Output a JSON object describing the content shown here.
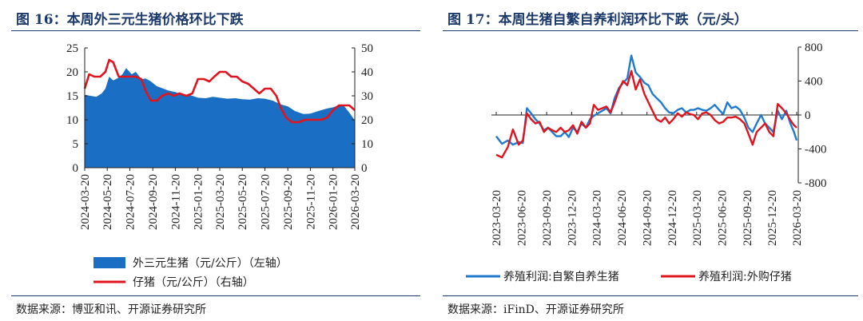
{
  "left": {
    "title": "图 16：本周外三元生猪价格环比下跌",
    "source": "数据来源：博亚和讯、开源证券研究所",
    "chart_data": {
      "type": "area",
      "x_ticks": [
        "2024-03-20",
        "2024-05-20",
        "2024-07-20",
        "2024-09-20",
        "2024-11-20",
        "2025-01-20",
        "2025-03-20",
        "2025-05-20",
        "2025-07-20",
        "2025-09-20",
        "2025-11-20",
        "2026-01-20",
        "2026-03-20"
      ],
      "ylim_left": [
        0,
        25
      ],
      "yticks_left": [
        0,
        5,
        10,
        15,
        20,
        25
      ],
      "ylim_right": [
        0,
        50
      ],
      "yticks_right": [
        0,
        10,
        20,
        30,
        40,
        50
      ],
      "series": [
        {
          "name": "外三元生猪（元/公斤）（左轴）",
          "axis": "left",
          "kind": "area",
          "color": "#1a6fc4",
          "x": [
            "2024-03-20",
            "2024-04-05",
            "2024-04-20",
            "2024-05-05",
            "2024-05-15",
            "2024-05-25",
            "2024-06-05",
            "2024-06-20",
            "2024-07-01",
            "2024-07-10",
            "2024-07-25",
            "2024-08-05",
            "2024-08-20",
            "2024-09-01",
            "2024-09-15",
            "2024-10-01",
            "2024-10-15",
            "2024-11-01",
            "2024-11-20",
            "2024-12-10",
            "2025-01-01",
            "2025-01-20",
            "2025-02-10",
            "2025-03-01",
            "2025-03-20",
            "2025-04-10",
            "2025-05-01",
            "2025-05-20",
            "2025-06-10",
            "2025-07-01",
            "2025-07-20",
            "2025-08-10",
            "2025-09-01",
            "2025-09-20",
            "2025-10-10",
            "2025-11-01",
            "2025-11-20",
            "2025-12-10",
            "2026-01-01",
            "2026-01-20",
            "2026-02-05",
            "2026-02-20",
            "2026-03-05",
            "2026-03-20"
          ],
          "y": [
            15.2,
            15.0,
            14.8,
            15.5,
            16.5,
            19.0,
            18.2,
            18.8,
            19.6,
            20.8,
            19.5,
            20.0,
            18.5,
            18.6,
            18.0,
            17.0,
            16.6,
            16.1,
            15.8,
            15.2,
            15.1,
            14.6,
            14.5,
            14.8,
            14.6,
            14.4,
            14.5,
            14.3,
            14.2,
            14.5,
            14.4,
            14.0,
            13.2,
            12.8,
            11.8,
            11.2,
            11.3,
            11.8,
            12.3,
            12.6,
            13.0,
            12.8,
            11.5,
            9.9
          ]
        },
        {
          "name": "仔猪（元/公斤）（右轴）",
          "axis": "right",
          "kind": "line",
          "color": "#e0141e",
          "x": [
            "2024-03-20",
            "2024-04-01",
            "2024-04-15",
            "2024-05-01",
            "2024-05-15",
            "2024-05-25",
            "2024-06-05",
            "2024-06-20",
            "2024-07-05",
            "2024-07-20",
            "2024-08-05",
            "2024-08-20",
            "2024-09-01",
            "2024-09-15",
            "2024-10-01",
            "2024-10-15",
            "2024-11-01",
            "2024-11-15",
            "2024-12-01",
            "2024-12-20",
            "2025-01-05",
            "2025-01-20",
            "2025-02-05",
            "2025-02-20",
            "2025-03-05",
            "2025-03-20",
            "2025-04-05",
            "2025-04-20",
            "2025-05-05",
            "2025-05-20",
            "2025-06-05",
            "2025-06-20",
            "2025-07-05",
            "2025-07-20",
            "2025-08-05",
            "2025-08-20",
            "2025-09-01",
            "2025-09-15",
            "2025-10-01",
            "2025-10-20",
            "2025-11-05",
            "2025-11-20",
            "2025-12-05",
            "2025-12-20",
            "2026-01-05",
            "2026-01-20",
            "2026-02-05",
            "2026-02-20",
            "2026-03-05",
            "2026-03-20"
          ],
          "y": [
            33,
            39,
            38,
            38,
            40,
            45,
            44,
            38,
            38,
            38,
            38,
            37,
            32,
            28,
            28,
            30,
            31,
            30,
            31,
            30,
            31,
            37,
            37,
            36,
            38,
            40,
            40,
            38,
            38,
            36,
            35,
            33,
            31,
            33,
            33,
            30,
            25,
            21,
            19,
            19,
            20,
            20,
            20,
            20,
            21,
            24,
            26,
            26,
            26,
            24
          ]
        }
      ]
    },
    "legend": [
      {
        "label": "外三元生猪（元/公斤）（左轴）",
        "color": "#1a6fc4",
        "kind": "area"
      },
      {
        "label": "仔猪（元/公斤）（右轴）",
        "color": "#e0141e",
        "kind": "line"
      }
    ]
  },
  "right": {
    "title": "图 17：本周生猪自繁自养利润环比下跌（元/头）",
    "source": "数据来源：iFinD、开源证券研究所",
    "chart_data": {
      "type": "line",
      "x_ticks": [
        "2023-03-20",
        "2023-06-20",
        "2023-09-20",
        "2023-12-20",
        "2024-03-20",
        "2024-06-20",
        "2024-09-20",
        "2024-12-20",
        "2025-03-20",
        "2025-06-20",
        "2025-09-20",
        "2025-12-20",
        "2026-03-20"
      ],
      "ylim": [
        -800,
        800
      ],
      "yticks": [
        -800,
        -400,
        0,
        400,
        800
      ],
      "series": [
        {
          "name": "养殖利润:自繁自养生猪",
          "color": "#1f7ad0",
          "x": [
            "2023-03-20",
            "2023-04-10",
            "2023-05-01",
            "2023-05-20",
            "2023-06-10",
            "2023-06-25",
            "2023-07-10",
            "2023-07-25",
            "2023-08-10",
            "2023-08-25",
            "2023-09-10",
            "2023-09-25",
            "2023-10-10",
            "2023-10-25",
            "2023-11-10",
            "2023-11-25",
            "2023-12-10",
            "2023-12-25",
            "2024-01-10",
            "2024-01-25",
            "2024-02-10",
            "2024-02-25",
            "2024-03-10",
            "2024-03-25",
            "2024-04-10",
            "2024-04-25",
            "2024-05-10",
            "2024-05-25",
            "2024-06-10",
            "2024-06-25",
            "2024-07-10",
            "2024-07-25",
            "2024-08-10",
            "2024-08-25",
            "2024-09-10",
            "2024-09-25",
            "2024-10-10",
            "2024-10-25",
            "2024-11-10",
            "2024-11-25",
            "2024-12-10",
            "2024-12-25",
            "2025-01-10",
            "2025-01-25",
            "2025-02-10",
            "2025-02-25",
            "2025-03-10",
            "2025-03-25",
            "2025-04-10",
            "2025-04-25",
            "2025-05-10",
            "2025-05-25",
            "2025-06-10",
            "2025-06-25",
            "2025-07-10",
            "2025-07-25",
            "2025-08-10",
            "2025-08-25",
            "2025-09-10",
            "2025-09-25",
            "2025-10-10",
            "2025-10-25",
            "2025-11-10",
            "2025-11-25",
            "2025-12-10",
            "2025-12-25",
            "2026-01-10",
            "2026-01-25",
            "2026-02-10",
            "2026-02-25",
            "2026-03-10",
            "2026-03-20"
          ],
          "y": [
            -250,
            -340,
            -300,
            -350,
            -320,
            -330,
            80,
            20,
            -50,
            -100,
            -180,
            -150,
            -200,
            -250,
            -250,
            -200,
            -260,
            -150,
            -200,
            -100,
            -150,
            -50,
            -10,
            20,
            50,
            80,
            20,
            200,
            320,
            380,
            430,
            700,
            500,
            450,
            380,
            350,
            250,
            200,
            150,
            80,
            30,
            20,
            60,
            80,
            30,
            60,
            60,
            80,
            60,
            50,
            80,
            120,
            60,
            10,
            150,
            80,
            100,
            60,
            -30,
            -150,
            -200,
            -100,
            0,
            -100,
            -150,
            -200,
            50,
            -50,
            50,
            -100,
            -200,
            -300
          ]
        },
        {
          "name": "养殖利润:外购仔猪",
          "color": "#e0141e",
          "x": [
            "2023-03-20",
            "2023-04-10",
            "2023-05-01",
            "2023-05-20",
            "2023-06-10",
            "2023-06-25",
            "2023-07-10",
            "2023-07-25",
            "2023-08-10",
            "2023-08-25",
            "2023-09-10",
            "2023-09-25",
            "2023-10-10",
            "2023-10-25",
            "2023-11-10",
            "2023-11-25",
            "2023-12-10",
            "2023-12-25",
            "2024-01-10",
            "2024-01-25",
            "2024-02-10",
            "2024-02-25",
            "2024-03-10",
            "2024-03-25",
            "2024-04-10",
            "2024-04-25",
            "2024-05-10",
            "2024-05-25",
            "2024-06-10",
            "2024-06-25",
            "2024-07-10",
            "2024-07-25",
            "2024-08-10",
            "2024-08-25",
            "2024-09-10",
            "2024-09-25",
            "2024-10-10",
            "2024-10-25",
            "2024-11-10",
            "2024-11-25",
            "2024-12-10",
            "2024-12-25",
            "2025-01-10",
            "2025-01-25",
            "2025-02-10",
            "2025-02-25",
            "2025-03-10",
            "2025-03-25",
            "2025-04-10",
            "2025-04-25",
            "2025-05-10",
            "2025-05-25",
            "2025-06-10",
            "2025-06-25",
            "2025-07-10",
            "2025-07-25",
            "2025-08-10",
            "2025-08-25",
            "2025-09-10",
            "2025-09-25",
            "2025-10-10",
            "2025-10-25",
            "2025-11-10",
            "2025-11-25",
            "2025-12-10",
            "2025-12-25",
            "2026-01-10",
            "2026-01-25",
            "2026-02-10",
            "2026-02-25",
            "2026-03-10",
            "2026-03-20"
          ],
          "y": [
            -470,
            -500,
            -380,
            -170,
            -350,
            -300,
            20,
            -50,
            -100,
            -80,
            -200,
            -150,
            -180,
            -200,
            -150,
            -200,
            -180,
            -120,
            -220,
            -80,
            -150,
            -100,
            120,
            60,
            80,
            100,
            30,
            150,
            300,
            400,
            350,
            520,
            300,
            420,
            250,
            150,
            50,
            -50,
            -80,
            -30,
            -100,
            -50,
            20,
            -20,
            30,
            10,
            0,
            -50,
            20,
            30,
            0,
            -60,
            -100,
            -80,
            -30,
            -30,
            -20,
            -50,
            -100,
            -220,
            -350,
            -200,
            -150,
            -100,
            -200,
            -250,
            130,
            80,
            20,
            -60,
            -120,
            -150
          ]
        }
      ]
    },
    "legend": [
      {
        "label": "养殖利润:自繁自养生猪",
        "color": "#1f7ad0"
      },
      {
        "label": "养殖利润:外购仔猪",
        "color": "#e0141e"
      }
    ]
  }
}
